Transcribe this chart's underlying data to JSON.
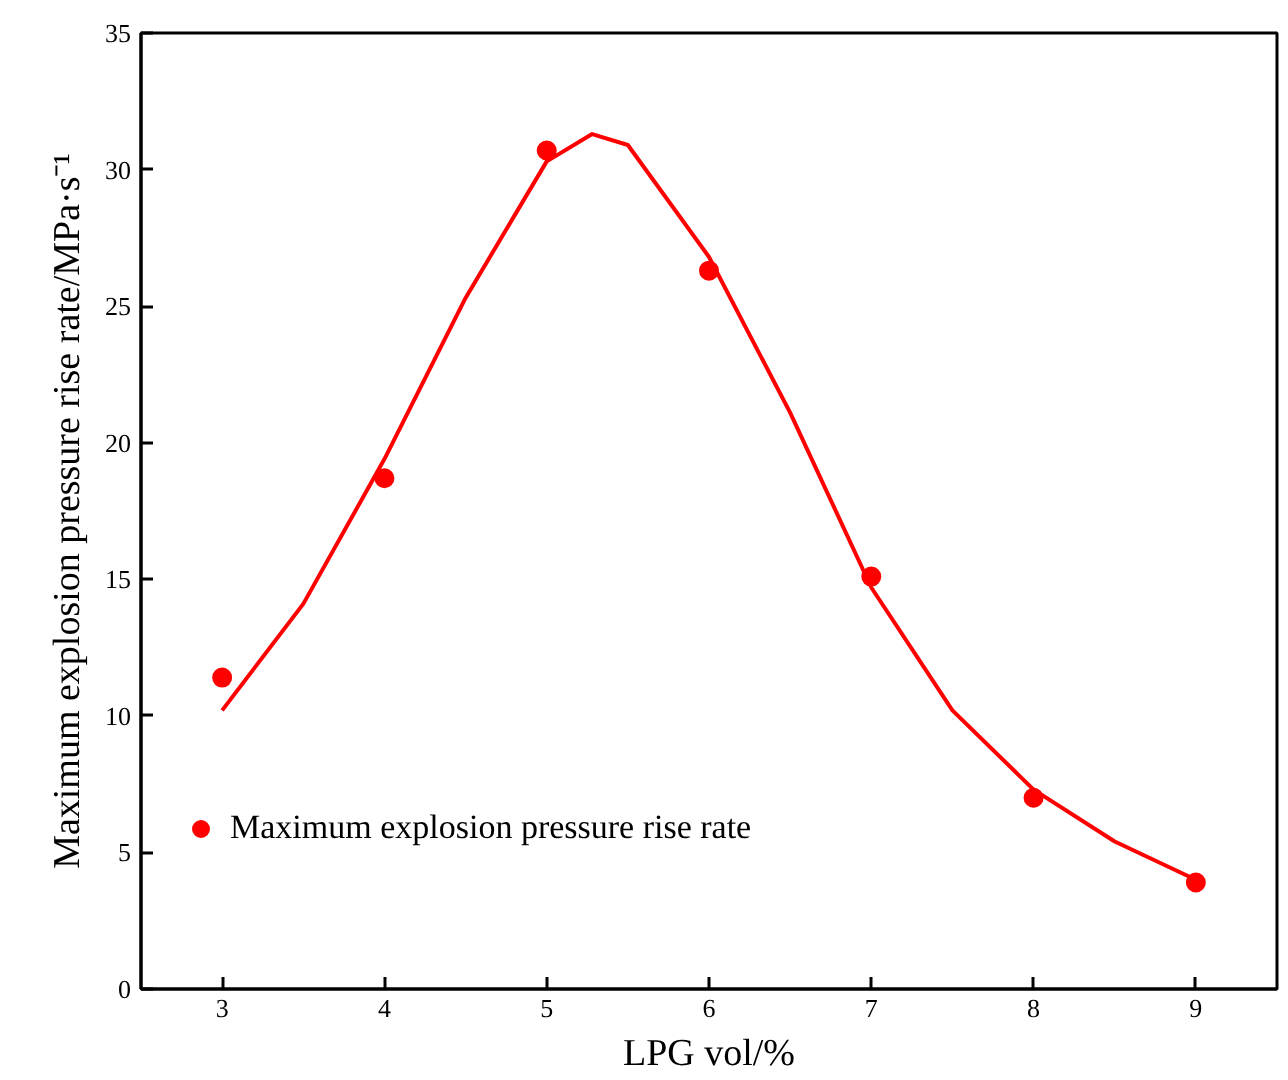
{
  "chart_data": {
    "type": "scatter",
    "xlabel": "LPG vol/%",
    "ylabel": "Maximum explosion pressure rise rate/MPa·s⁻¹",
    "xlim": [
      2.5,
      9.5
    ],
    "ylim": [
      0,
      35
    ],
    "xticks": [
      3,
      4,
      5,
      6,
      7,
      8,
      9
    ],
    "yticks": [
      0,
      5,
      10,
      15,
      20,
      25,
      30,
      35
    ],
    "grid": false,
    "legend": "bottom left",
    "series": [
      {
        "name": "Maximum explosion pressure rise rate",
        "color": "#ff0000",
        "marker": "circle",
        "x": [
          3,
          4,
          5,
          6,
          7,
          8,
          9
        ],
        "values": [
          11.4,
          18.7,
          30.7,
          26.3,
          15.1,
          7.0,
          3.9
        ]
      },
      {
        "type": "line",
        "color": "#ff0000",
        "line_style": "solid",
        "marker": "none",
        "x": [
          3,
          3.5,
          4,
          4.5,
          5,
          5.28,
          5.5,
          6,
          6.5,
          7,
          7.5,
          8,
          8.5,
          9
        ],
        "values": [
          10.2,
          14.1,
          19.4,
          25.3,
          30.3,
          31.3,
          30.9,
          26.8,
          21.1,
          14.7,
          10.2,
          7.3,
          5.4,
          4.0
        ]
      }
    ]
  }
}
